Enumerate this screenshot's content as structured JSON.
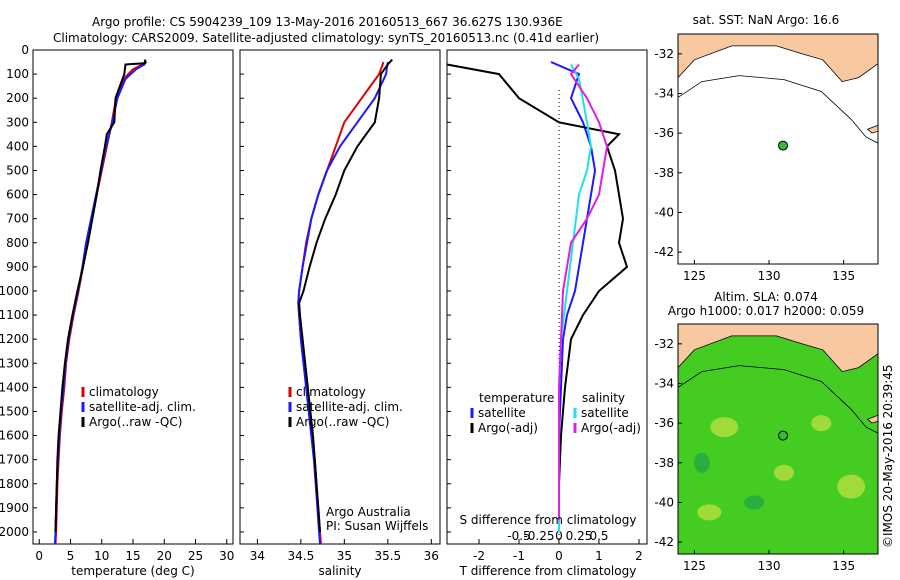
{
  "header": {
    "title_line1": "Argo profile: CS 5904239_109 13-May-2016 20160513_667 36.627S 130.936E",
    "title_line2": "Climatology: CARS2009. Satellite-adjusted climatology: synTS_20160513.nc (0.41d earlier)"
  },
  "colors": {
    "climatology": "#e00000",
    "satellite": "#1a1aff",
    "argo": "#000000",
    "sat_cyan": "#22e0e8",
    "argo_magenta": "#e020e0",
    "land": "#f8c8a0",
    "ocean": "#ffffff",
    "sla_green": "#44cc22",
    "float": "#33bb33"
  },
  "chart_data": [
    {
      "type": "line",
      "name": "temperature_profile",
      "xlabel": "temperature (deg C)",
      "ylim": [
        2050,
        0
      ],
      "xlim": [
        -1,
        31
      ],
      "xticks": [
        0,
        5,
        10,
        15,
        20,
        25,
        30
      ],
      "yticks": [
        0,
        100,
        200,
        300,
        400,
        500,
        600,
        700,
        800,
        900,
        1000,
        1100,
        1200,
        1300,
        1400,
        1500,
        1600,
        1700,
        1800,
        1900,
        2000
      ],
      "legend": [
        "climatology",
        "satellite-adj. clim.",
        "Argo(..raw -QC)"
      ],
      "series": [
        {
          "name": "climatology",
          "color": "#e00000",
          "points": [
            [
              17.2,
              50
            ],
            [
              16.5,
              60
            ],
            [
              15,
              80
            ],
            [
              13.5,
              120
            ],
            [
              12.3,
              200
            ],
            [
              11.6,
              300
            ],
            [
              10.8,
              400
            ],
            [
              10,
              500
            ],
            [
              9.2,
              600
            ],
            [
              8.4,
              700
            ],
            [
              7.6,
              800
            ],
            [
              7,
              900
            ],
            [
              6.3,
              1000
            ],
            [
              5.5,
              1100
            ],
            [
              4.8,
              1200
            ],
            [
              4.3,
              1300
            ],
            [
              4,
              1400
            ],
            [
              3.6,
              1500
            ],
            [
              3.3,
              1600
            ],
            [
              3.1,
              1700
            ],
            [
              2.9,
              1800
            ],
            [
              2.8,
              1900
            ],
            [
              2.7,
              2000
            ],
            [
              2.6,
              2050
            ]
          ]
        },
        {
          "name": "satellite-adj. clim.",
          "color": "#1a1aff",
          "points": [
            [
              17,
              50
            ],
            [
              16.8,
              60
            ],
            [
              15.5,
              80
            ],
            [
              13.8,
              120
            ],
            [
              12.5,
              200
            ],
            [
              11.7,
              300
            ],
            [
              10.7,
              400
            ],
            [
              9.9,
              500
            ],
            [
              9.1,
              600
            ],
            [
              8.3,
              700
            ],
            [
              7.5,
              800
            ],
            [
              6.9,
              900
            ],
            [
              6.2,
              1000
            ],
            [
              5.4,
              1100
            ],
            [
              4.7,
              1200
            ],
            [
              4.2,
              1300
            ],
            [
              3.9,
              1400
            ],
            [
              3.5,
              1500
            ],
            [
              3.2,
              1600
            ],
            [
              3,
              1700
            ],
            [
              2.8,
              1800
            ],
            [
              2.7,
              1900
            ],
            [
              2.6,
              2000
            ],
            [
              2.5,
              2050
            ]
          ]
        },
        {
          "name": "Argo(..raw -QC)",
          "color": "#000000",
          "points": [
            [
              17,
              40
            ],
            [
              16.8,
              55
            ],
            [
              13.8,
              60
            ],
            [
              13.6,
              100
            ],
            [
              12.2,
              200
            ],
            [
              12,
              300
            ],
            [
              10.8,
              350
            ],
            [
              10.5,
              400
            ],
            [
              9.8,
              500
            ],
            [
              9.2,
              600
            ],
            [
              8.5,
              700
            ],
            [
              7.8,
              800
            ],
            [
              7,
              900
            ],
            [
              6.1,
              1000
            ],
            [
              5.3,
              1100
            ],
            [
              4.6,
              1200
            ],
            [
              4.1,
              1300
            ],
            [
              3.7,
              1400
            ],
            [
              3.4,
              1500
            ],
            [
              3.1,
              1600
            ],
            [
              2.9,
              1700
            ],
            [
              2.8,
              1800
            ],
            [
              2.7,
              1900
            ],
            [
              2.6,
              2000
            ]
          ]
        }
      ]
    },
    {
      "type": "line",
      "name": "salinity_profile",
      "xlabel": "salinity",
      "ylim": [
        2050,
        0
      ],
      "xlim": [
        33.8,
        36.1
      ],
      "xticks": [
        34,
        34.5,
        35,
        35.5,
        36
      ],
      "legend": [
        "climatology",
        "satellite-adj. clim.",
        "Argo(..raw -QC)"
      ],
      "annotation": [
        "Argo Australia",
        "PI: Susan Wijffels"
      ],
      "series": [
        {
          "name": "climatology",
          "color": "#e00000",
          "points": [
            [
              35.45,
              50
            ],
            [
              35.4,
              100
            ],
            [
              35.2,
              200
            ],
            [
              35.0,
              300
            ],
            [
              34.9,
              400
            ],
            [
              34.8,
              500
            ],
            [
              34.7,
              600
            ],
            [
              34.62,
              700
            ],
            [
              34.56,
              800
            ],
            [
              34.52,
              900
            ],
            [
              34.48,
              1000
            ],
            [
              34.47,
              1050
            ],
            [
              34.48,
              1100
            ],
            [
              34.5,
              1200
            ],
            [
              34.53,
              1300
            ],
            [
              34.57,
              1400
            ],
            [
              34.6,
              1500
            ],
            [
              34.63,
              1600
            ],
            [
              34.66,
              1700
            ],
            [
              34.68,
              1800
            ],
            [
              34.7,
              1900
            ],
            [
              34.72,
              2000
            ],
            [
              34.73,
              2050
            ]
          ]
        },
        {
          "name": "satellite-adj. clim.",
          "color": "#1a1aff",
          "points": [
            [
              35.5,
              50
            ],
            [
              35.48,
              100
            ],
            [
              35.35,
              200
            ],
            [
              35.15,
              300
            ],
            [
              34.95,
              400
            ],
            [
              34.8,
              500
            ],
            [
              34.7,
              600
            ],
            [
              34.62,
              700
            ],
            [
              34.57,
              800
            ],
            [
              34.52,
              900
            ],
            [
              34.48,
              1000
            ],
            [
              34.47,
              1050
            ],
            [
              34.48,
              1100
            ],
            [
              34.5,
              1200
            ],
            [
              34.53,
              1300
            ],
            [
              34.56,
              1400
            ],
            [
              34.59,
              1500
            ],
            [
              34.62,
              1600
            ],
            [
              34.65,
              1700
            ],
            [
              34.67,
              1800
            ],
            [
              34.69,
              1900
            ],
            [
              34.71,
              2000
            ],
            [
              34.72,
              2050
            ]
          ]
        },
        {
          "name": "Argo(..raw -QC)",
          "color": "#000000",
          "points": [
            [
              35.55,
              40
            ],
            [
              35.5,
              60
            ],
            [
              35.42,
              100
            ],
            [
              35.4,
              200
            ],
            [
              35.35,
              300
            ],
            [
              35.15,
              400
            ],
            [
              35.0,
              500
            ],
            [
              34.9,
              600
            ],
            [
              34.78,
              700
            ],
            [
              34.68,
              800
            ],
            [
              34.6,
              900
            ],
            [
              34.53,
              1000
            ],
            [
              34.48,
              1050
            ],
            [
              34.49,
              1100
            ],
            [
              34.52,
              1200
            ],
            [
              34.55,
              1300
            ],
            [
              34.58,
              1400
            ],
            [
              34.61,
              1500
            ],
            [
              34.64,
              1600
            ],
            [
              34.66,
              1700
            ],
            [
              34.68,
              1800
            ],
            [
              34.7,
              1900
            ],
            [
              34.72,
              2000
            ]
          ]
        }
      ]
    },
    {
      "type": "line",
      "name": "difference_profile",
      "xlabel": "T difference from climatology",
      "xlabel_top": "S difference from climatology",
      "ylim": [
        2050,
        0
      ],
      "xlim": [
        -2.8,
        2.2
      ],
      "xticks": [
        -2,
        -1,
        0,
        1,
        2
      ],
      "xticks_top": [
        "-0.5",
        "-0.25",
        "0",
        "0.25",
        "0.5"
      ],
      "legend": [
        "temperature",
        "satellite",
        "Argo(-adj)",
        "salinity",
        "satellite",
        "Argo(-adj)"
      ],
      "series": [
        {
          "name": "temperature satellite",
          "color": "#1a1aff",
          "points": [
            [
              -0.2,
              50
            ],
            [
              0.5,
              100
            ],
            [
              0.3,
              200
            ],
            [
              0.6,
              300
            ],
            [
              0.8,
              400
            ],
            [
              0.9,
              500
            ],
            [
              0.8,
              600
            ],
            [
              0.7,
              700
            ],
            [
              0.6,
              800
            ],
            [
              0.5,
              900
            ],
            [
              0.4,
              1000
            ],
            [
              0.2,
              1100
            ],
            [
              0.1,
              1200
            ],
            [
              0.05,
              1400
            ],
            [
              0,
              1600
            ],
            [
              0,
              1800
            ],
            [
              0,
              2000
            ]
          ]
        },
        {
          "name": "temperature Argo(-adj)",
          "color": "#000000",
          "points": [
            [
              -2.8,
              60
            ],
            [
              -1.5,
              100
            ],
            [
              -1,
              200
            ],
            [
              0,
              300
            ],
            [
              1.5,
              350
            ],
            [
              1.2,
              400
            ],
            [
              1.4,
              500
            ],
            [
              1.5,
              600
            ],
            [
              1.6,
              700
            ],
            [
              1.5,
              800
            ],
            [
              1.7,
              900
            ],
            [
              1.0,
              1000
            ],
            [
              0.6,
              1100
            ],
            [
              0.3,
              1200
            ],
            [
              0.15,
              1400
            ],
            [
              0.05,
              1600
            ],
            [
              0,
              1800
            ],
            [
              0,
              2000
            ]
          ]
        },
        {
          "name": "salinity satellite",
          "color": "#22e0e8",
          "points": [
            [
              0.3,
              60
            ],
            [
              0.5,
              120
            ],
            [
              0.7,
              300
            ],
            [
              0.8,
              400
            ],
            [
              0.7,
              500
            ],
            [
              0.5,
              600
            ],
            [
              0.35,
              800
            ],
            [
              0.2,
              1000
            ],
            [
              0.05,
              1200
            ],
            [
              0,
              1400
            ],
            [
              0,
              1600
            ],
            [
              0,
              1800
            ],
            [
              0,
              2000
            ]
          ]
        },
        {
          "name": "salinity Argo(-adj)",
          "color": "#e020e0",
          "points": [
            [
              0.5,
              60
            ],
            [
              0.3,
              100
            ],
            [
              0.7,
              200
            ],
            [
              1.0,
              300
            ],
            [
              1.2,
              400
            ],
            [
              1.1,
              500
            ],
            [
              1.0,
              600
            ],
            [
              0.7,
              700
            ],
            [
              0.3,
              800
            ],
            [
              0.2,
              900
            ],
            [
              0.1,
              1000
            ],
            [
              0.05,
              1200
            ],
            [
              0,
              1400
            ],
            [
              0,
              1600
            ],
            [
              0,
              1800
            ],
            [
              0,
              1950
            ]
          ]
        }
      ]
    },
    {
      "type": "map",
      "name": "sst_map",
      "title": "sat. SST: NaN Argo: 16.6",
      "xlim": [
        123.9,
        137.3
      ],
      "ylim": [
        -42.6,
        -31
      ]
    },
    {
      "type": "map",
      "name": "sla_map",
      "title": "Altim. SLA: 0.074",
      "subtitle": "Argo h1000: 0.017 h2000: 0.059",
      "xlim": [
        123.9,
        137.3
      ],
      "ylim": [
        -42.6,
        -31
      ]
    }
  ],
  "maps": {
    "xticks": [
      "125",
      "130",
      "135"
    ],
    "yticks": [
      "-32",
      "-34",
      "-36",
      "-38",
      "-40",
      "-42"
    ]
  },
  "credit": "©IMOS 20-May-2016 20:39:45"
}
